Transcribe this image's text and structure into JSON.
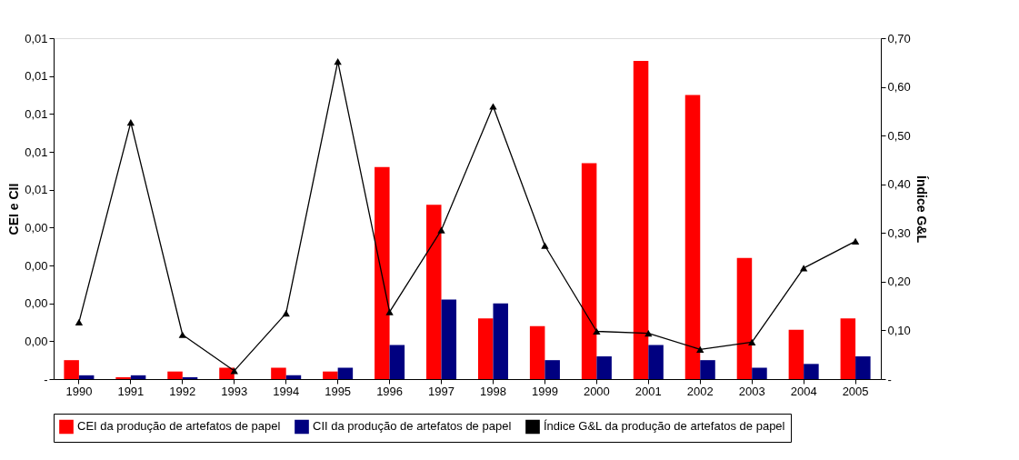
{
  "chart_data": {
    "type": "bar",
    "ylabel": "CEI e CII",
    "y2label": "Índice G&L",
    "categories": [
      "1990",
      "1991",
      "1992",
      "1993",
      "1994",
      "1995",
      "1996",
      "1997",
      "1998",
      "1999",
      "2000",
      "2001",
      "2002",
      "2003",
      "2004",
      "2005"
    ],
    "series": [
      {
        "name": "CEI da produção de artefatos de papel",
        "color": "#ff0000",
        "values": [
          0.0005,
          5e-05,
          0.0002,
          0.0003,
          0.0003,
          0.0002,
          0.0056,
          0.0046,
          0.0016,
          0.0014,
          0.0057,
          0.0084,
          0.0075,
          0.0032,
          0.0013,
          0.0016
        ]
      },
      {
        "name": "CII da produção de artefatos de papel",
        "color": "#000080",
        "values": [
          0.0001,
          0.0001,
          5e-05,
          0.0,
          0.0001,
          0.0003,
          0.0009,
          0.0021,
          0.002,
          0.0005,
          0.0006,
          0.0009,
          0.0005,
          0.0003,
          0.0004,
          0.0006
        ]
      },
      {
        "name": "Índice G&L da produção de artefatos de papel",
        "color": "#000000",
        "type": "line",
        "axis": "y2",
        "values": [
          0.117,
          0.527,
          0.091,
          0.017,
          0.135,
          0.652,
          0.138,
          0.306,
          0.56,
          0.274,
          0.098,
          0.094,
          0.061,
          0.076,
          0.228,
          0.283
        ]
      }
    ],
    "ylim": [
      0,
      0.009
    ],
    "yticks": [
      {
        "value": 0,
        "label": "-"
      },
      {
        "value": 0.001,
        "label": "0,00"
      },
      {
        "value": 0.002,
        "label": "0,00"
      },
      {
        "value": 0.003,
        "label": "0,00"
      },
      {
        "value": 0.004,
        "label": "0,00"
      },
      {
        "value": 0.005,
        "label": "0,01"
      },
      {
        "value": 0.006,
        "label": "0,01"
      },
      {
        "value": 0.007,
        "label": "0,01"
      },
      {
        "value": 0.008,
        "label": "0,01"
      },
      {
        "value": 0.009,
        "label": "0,01"
      }
    ],
    "y2lim": [
      0,
      0.7
    ],
    "y2ticks": [
      {
        "value": 0,
        "label": "-"
      },
      {
        "value": 0.1,
        "label": "0,10"
      },
      {
        "value": 0.2,
        "label": "0,20"
      },
      {
        "value": 0.3,
        "label": "0,30"
      },
      {
        "value": 0.4,
        "label": "0,40"
      },
      {
        "value": 0.5,
        "label": "0,50"
      },
      {
        "value": 0.6,
        "label": "0,60"
      },
      {
        "value": 0.7,
        "label": "0,70"
      }
    ],
    "marker": "triangle",
    "legend": "bottom",
    "grid": false
  }
}
